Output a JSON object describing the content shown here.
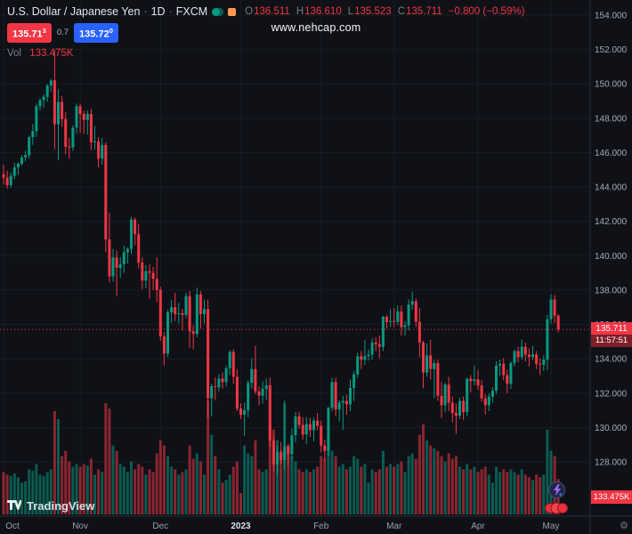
{
  "colors": {
    "up": "#089981",
    "down": "#f23645",
    "vol_up": "rgba(8,153,129,0.55)",
    "vol_down": "rgba(242,54,69,0.55)",
    "bid_bg": "#f23645",
    "ask_bg": "#2962ff",
    "grid": "rgba(140,150,180,0.08)",
    "axis_text": "#a6abb8"
  },
  "header": {
    "symbol_title": "U.S. Dollar / Japanese Yen",
    "separator": "·",
    "interval": "1D",
    "exchange": "FXCM",
    "ohlc": {
      "o_label": "O",
      "o_value": "136.511",
      "h_label": "H",
      "h_value": "136.610",
      "l_label": "L",
      "l_value": "135.523",
      "c_label": "C",
      "c_value": "135.711",
      "change": "−0.800 (−0.59%)"
    },
    "quote": {
      "bid": "135.71",
      "bid_sup": "3",
      "spread": "0.7",
      "ask": "135.72",
      "ask_sup": "0"
    },
    "volume": {
      "label": "Vol",
      "value": "133.475K"
    }
  },
  "watermark": "www.nehcap.com",
  "price_scale": {
    "last_price_label": "135.711",
    "countdown": "11:57:51"
  },
  "volume_scale_label": "133.475K",
  "footer": {
    "logo_text": "TradingView"
  },
  "chart_data": {
    "type": "candlestick",
    "title": "U.S. Dollar / Japanese Yen, 1D, FXCM",
    "ylim": [
      124.8,
      154.9
    ],
    "grid": true,
    "price_ticks": [
      {
        "v": 154,
        "label": "154.000"
      },
      {
        "v": 152,
        "label": "152.000"
      },
      {
        "v": 150,
        "label": "150.000"
      },
      {
        "v": 148,
        "label": "148.000"
      },
      {
        "v": 146,
        "label": "146.000"
      },
      {
        "v": 144,
        "label": "144.000"
      },
      {
        "v": 142,
        "label": "142.000"
      },
      {
        "v": 140,
        "label": "140.000"
      },
      {
        "v": 138,
        "label": "138.000"
      },
      {
        "v": 136,
        "label": "136.000"
      },
      {
        "v": 134,
        "label": "134.000"
      },
      {
        "v": 132,
        "label": "132.000"
      },
      {
        "v": 130,
        "label": "130.000"
      },
      {
        "v": 128,
        "label": "128.000"
      }
    ],
    "time_marks": [
      {
        "i": 0,
        "label": "Oct"
      },
      {
        "i": 21,
        "label": "Nov"
      },
      {
        "i": 43,
        "label": "Dec"
      },
      {
        "i": 65,
        "label": "2023",
        "year": true
      },
      {
        "i": 87,
        "label": "Feb"
      },
      {
        "i": 107,
        "label": "Mar"
      },
      {
        "i": 130,
        "label": "Apr"
      },
      {
        "i": 150,
        "label": "May"
      }
    ],
    "volume_unit": "K",
    "candles": [
      [
        144.75,
        145.3,
        144.15,
        144.55,
        160
      ],
      [
        144.55,
        144.95,
        143.9,
        144.1,
        150
      ],
      [
        144.1,
        144.85,
        143.95,
        144.65,
        145
      ],
      [
        144.65,
        145.4,
        144.45,
        145.14,
        155
      ],
      [
        145.14,
        145.45,
        144.7,
        145.35,
        140
      ],
      [
        145.35,
        145.85,
        145.25,
        145.72,
        120
      ],
      [
        145.72,
        146.1,
        145.5,
        145.85,
        125
      ],
      [
        145.85,
        146.98,
        145.65,
        146.9,
        170
      ],
      [
        146.9,
        147.65,
        146.45,
        147.25,
        165
      ],
      [
        147.25,
        148.85,
        146.9,
        148.7,
        190
      ],
      [
        148.7,
        149.15,
        148.45,
        149.05,
        150
      ],
      [
        149.05,
        149.4,
        148.6,
        149.25,
        145
      ],
      [
        149.25,
        150.0,
        148.95,
        149.9,
        160
      ],
      [
        149.9,
        150.28,
        149.55,
        150.2,
        170
      ],
      [
        150.2,
        151.94,
        146.2,
        147.65,
        390
      ],
      [
        147.65,
        149.7,
        145.56,
        148.95,
        360
      ],
      [
        148.95,
        149.3,
        147.5,
        147.95,
        220
      ],
      [
        147.95,
        148.35,
        145.9,
        146.35,
        240
      ],
      [
        146.35,
        146.85,
        145.65,
        146.3,
        200
      ],
      [
        146.3,
        147.6,
        146.1,
        147.45,
        180
      ],
      [
        147.45,
        148.85,
        147.1,
        148.7,
        190
      ],
      [
        148.7,
        148.85,
        147.15,
        148.25,
        180
      ],
      [
        148.25,
        148.45,
        147.1,
        147.9,
        190
      ],
      [
        147.9,
        148.45,
        147.05,
        148.25,
        185
      ],
      [
        148.25,
        148.55,
        146.15,
        146.6,
        210
      ],
      [
        146.6,
        147.55,
        146.2,
        146.65,
        150
      ],
      [
        146.65,
        146.9,
        145.15,
        145.65,
        170
      ],
      [
        145.65,
        146.85,
        145.3,
        146.45,
        160
      ],
      [
        146.45,
        146.6,
        140.2,
        140.95,
        420
      ],
      [
        140.95,
        142.5,
        138.45,
        138.8,
        400
      ],
      [
        138.8,
        140.4,
        138.5,
        139.9,
        260
      ],
      [
        139.9,
        140.3,
        137.65,
        139.3,
        240
      ],
      [
        139.3,
        139.9,
        138.7,
        139.5,
        190
      ],
      [
        139.5,
        140.6,
        139.0,
        140.2,
        180
      ],
      [
        140.2,
        140.5,
        139.55,
        140.4,
        160
      ],
      [
        140.4,
        142.25,
        140.1,
        142.1,
        200
      ],
      [
        142.1,
        142.2,
        140.6,
        141.25,
        170
      ],
      [
        141.25,
        141.85,
        139.25,
        139.6,
        190
      ],
      [
        139.6,
        139.9,
        138.05,
        138.55,
        180
      ],
      [
        138.55,
        139.45,
        138.1,
        139.1,
        150
      ],
      [
        139.1,
        139.5,
        137.5,
        139.0,
        170
      ],
      [
        139.0,
        139.35,
        138.0,
        138.65,
        160
      ],
      [
        138.65,
        139.9,
        137.3,
        138.0,
        230
      ],
      [
        138.0,
        138.2,
        135.05,
        135.3,
        280
      ],
      [
        135.3,
        135.55,
        133.62,
        134.3,
        260
      ],
      [
        134.3,
        136.85,
        134.1,
        136.7,
        220
      ],
      [
        136.7,
        137.4,
        136.1,
        137.0,
        180
      ],
      [
        137.0,
        137.85,
        136.2,
        136.6,
        170
      ],
      [
        136.6,
        137.25,
        136.05,
        136.65,
        150
      ],
      [
        136.65,
        136.9,
        135.65,
        136.55,
        160
      ],
      [
        136.55,
        137.85,
        136.35,
        137.65,
        170
      ],
      [
        137.65,
        137.95,
        134.65,
        135.6,
        260
      ],
      [
        135.6,
        135.95,
        134.55,
        135.45,
        210
      ],
      [
        135.45,
        138.15,
        135.25,
        137.75,
        230
      ],
      [
        137.75,
        137.95,
        135.75,
        136.6,
        200
      ],
      [
        136.6,
        137.45,
        136.05,
        136.9,
        150
      ],
      [
        136.9,
        137.45,
        130.58,
        131.7,
        430
      ],
      [
        131.7,
        132.55,
        130.65,
        132.4,
        300
      ],
      [
        132.4,
        132.9,
        131.6,
        132.35,
        220
      ],
      [
        132.35,
        133.1,
        132.1,
        132.85,
        170
      ],
      [
        132.85,
        133.2,
        132.25,
        132.65,
        120
      ],
      [
        132.65,
        133.6,
        132.4,
        133.45,
        130
      ],
      [
        133.45,
        134.5,
        133.05,
        134.4,
        150
      ],
      [
        134.4,
        134.55,
        132.55,
        132.95,
        180
      ],
      [
        132.95,
        133.4,
        130.95,
        131.1,
        200
      ],
      [
        131.1,
        131.4,
        130.5,
        130.75,
        80
      ],
      [
        130.75,
        131.45,
        129.52,
        131.0,
        260
      ],
      [
        131.0,
        132.75,
        130.6,
        132.6,
        230
      ],
      [
        132.6,
        134.05,
        132.25,
        133.4,
        220
      ],
      [
        133.4,
        134.77,
        131.95,
        132.1,
        280
      ],
      [
        132.1,
        132.4,
        131.3,
        131.85,
        170
      ],
      [
        131.85,
        132.7,
        131.4,
        132.25,
        160
      ],
      [
        132.25,
        132.85,
        131.6,
        132.45,
        170
      ],
      [
        132.45,
        132.9,
        128.9,
        129.25,
        350
      ],
      [
        129.25,
        129.45,
        127.46,
        127.85,
        320
      ],
      [
        127.85,
        128.9,
        127.23,
        128.55,
        280
      ],
      [
        128.55,
        129.15,
        127.9,
        128.1,
        240
      ],
      [
        128.1,
        131.57,
        127.57,
        128.9,
        420
      ],
      [
        128.9,
        129.05,
        127.8,
        128.45,
        260
      ],
      [
        128.45,
        129.95,
        128.15,
        129.55,
        220
      ],
      [
        129.55,
        130.9,
        129.15,
        130.65,
        200
      ],
      [
        130.65,
        130.9,
        129.95,
        130.15,
        170
      ],
      [
        130.15,
        130.6,
        129.3,
        129.6,
        160
      ],
      [
        129.6,
        130.6,
        129.05,
        130.2,
        170
      ],
      [
        130.2,
        130.55,
        129.45,
        129.85,
        160
      ],
      [
        129.85,
        130.55,
        129.2,
        130.4,
        170
      ],
      [
        130.4,
        130.85,
        129.85,
        130.1,
        180
      ],
      [
        130.1,
        130.4,
        128.55,
        128.95,
        220
      ],
      [
        128.95,
        129.3,
        128.08,
        128.65,
        210
      ],
      [
        128.65,
        131.2,
        128.35,
        131.15,
        300
      ],
      [
        131.15,
        132.9,
        130.95,
        132.65,
        240
      ],
      [
        132.65,
        132.9,
        130.65,
        131.05,
        220
      ],
      [
        131.05,
        131.6,
        130.35,
        131.45,
        180
      ],
      [
        131.45,
        131.85,
        129.85,
        131.55,
        190
      ],
      [
        131.55,
        131.9,
        130.75,
        131.35,
        170
      ],
      [
        131.35,
        132.8,
        130.95,
        132.3,
        180
      ],
      [
        132.3,
        133.3,
        131.55,
        133.1,
        220
      ],
      [
        133.1,
        134.35,
        132.9,
        134.15,
        210
      ],
      [
        134.15,
        134.45,
        133.4,
        133.95,
        180
      ],
      [
        133.95,
        135.1,
        133.65,
        134.15,
        190
      ],
      [
        134.15,
        134.55,
        133.9,
        134.25,
        120
      ],
      [
        134.25,
        135.2,
        133.95,
        134.95,
        170
      ],
      [
        134.95,
        135.25,
        134.45,
        134.85,
        160
      ],
      [
        134.85,
        135.35,
        134.05,
        134.7,
        170
      ],
      [
        134.7,
        136.5,
        134.45,
        136.45,
        240
      ],
      [
        136.45,
        136.55,
        135.75,
        136.15,
        180
      ],
      [
        136.15,
        136.9,
        135.85,
        136.2,
        190
      ],
      [
        136.2,
        136.95,
        135.85,
        136.15,
        180
      ],
      [
        136.15,
        137.1,
        135.95,
        136.75,
        190
      ],
      [
        136.75,
        137.1,
        135.35,
        135.85,
        200
      ],
      [
        135.85,
        136.2,
        135.35,
        135.95,
        160
      ],
      [
        135.95,
        137.45,
        135.65,
        137.15,
        220
      ],
      [
        137.15,
        137.91,
        136.85,
        137.35,
        230
      ],
      [
        137.35,
        137.5,
        135.85,
        136.15,
        210
      ],
      [
        136.15,
        136.95,
        134.1,
        134.95,
        300
      ],
      [
        134.95,
        135.05,
        132.29,
        133.2,
        340
      ],
      [
        133.2,
        134.9,
        132.95,
        134.2,
        280
      ],
      [
        134.2,
        135.1,
        132.8,
        133.4,
        260
      ],
      [
        133.4,
        133.95,
        131.72,
        133.75,
        250
      ],
      [
        133.75,
        133.95,
        131.55,
        131.85,
        240
      ],
      [
        131.85,
        132.65,
        130.55,
        131.3,
        220
      ],
      [
        131.3,
        132.6,
        130.9,
        132.5,
        200
      ],
      [
        132.5,
        132.95,
        130.95,
        131.45,
        230
      ],
      [
        131.45,
        131.8,
        130.3,
        130.85,
        210
      ],
      [
        130.85,
        131.4,
        129.64,
        130.7,
        220
      ],
      [
        130.7,
        131.75,
        130.5,
        131.55,
        180
      ],
      [
        131.55,
        131.8,
        130.45,
        130.9,
        170
      ],
      [
        130.9,
        132.9,
        130.65,
        132.85,
        190
      ],
      [
        132.85,
        133.05,
        132.05,
        132.7,
        170
      ],
      [
        132.7,
        133.6,
        132.45,
        132.8,
        180
      ],
      [
        132.8,
        133.35,
        132.2,
        132.45,
        160
      ],
      [
        132.45,
        132.75,
        131.5,
        131.7,
        170
      ],
      [
        131.7,
        131.95,
        130.75,
        131.3,
        180
      ],
      [
        131.3,
        132.0,
        130.95,
        131.8,
        150
      ],
      [
        131.8,
        132.35,
        131.45,
        132.15,
        120
      ],
      [
        132.15,
        133.85,
        131.95,
        133.6,
        180
      ],
      [
        133.6,
        133.95,
        133.0,
        133.7,
        160
      ],
      [
        133.7,
        134.05,
        132.75,
        133.05,
        170
      ],
      [
        133.05,
        133.35,
        132.0,
        132.55,
        160
      ],
      [
        132.55,
        133.85,
        132.25,
        133.75,
        170
      ],
      [
        133.75,
        134.55,
        133.55,
        134.45,
        160
      ],
      [
        134.45,
        134.7,
        133.8,
        134.1,
        150
      ],
      [
        134.1,
        135.13,
        133.95,
        134.7,
        170
      ],
      [
        134.7,
        134.95,
        133.85,
        134.25,
        150
      ],
      [
        134.25,
        134.6,
        133.55,
        134.1,
        140
      ],
      [
        134.1,
        134.75,
        133.95,
        134.25,
        130
      ],
      [
        134.25,
        134.45,
        133.4,
        133.7,
        150
      ],
      [
        133.7,
        134.05,
        133.05,
        133.65,
        140
      ],
      [
        133.65,
        134.2,
        133.3,
        133.95,
        150
      ],
      [
        133.95,
        136.55,
        133.35,
        136.3,
        320
      ],
      [
        136.3,
        137.77,
        136.05,
        137.45,
        240
      ],
      [
        137.45,
        137.7,
        136.1,
        136.5,
        220
      ],
      [
        136.511,
        136.61,
        135.523,
        135.711,
        133.475
      ]
    ]
  }
}
